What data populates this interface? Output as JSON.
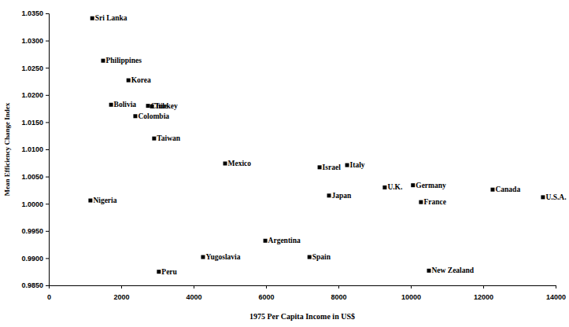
{
  "chart_data": {
    "type": "scatter",
    "xlabel": "1975 Per Capita Income in US$",
    "ylabel": "Mean Efficiency Change Index",
    "xlim": [
      0,
      14000
    ],
    "xticks": [
      0,
      2000,
      4000,
      6000,
      8000,
      10000,
      12000,
      14000
    ],
    "ylim": [
      0.985,
      1.035
    ],
    "yticks": [
      {
        "value": 0.985,
        "label": "0.9850"
      },
      {
        "value": 0.99,
        "label": "0.9900"
      },
      {
        "value": 0.995,
        "label": "0.9950"
      },
      {
        "value": 1.0,
        "label": "1.0000"
      },
      {
        "value": 1.005,
        "label": "1.0050"
      },
      {
        "value": 1.01,
        "label": "1.0100"
      },
      {
        "value": 1.015,
        "label": "1.0150"
      },
      {
        "value": 1.02,
        "label": "1.0200"
      },
      {
        "value": 1.025,
        "label": "1.0250"
      },
      {
        "value": 1.03,
        "label": "1.0300"
      },
      {
        "value": 1.035,
        "label": "1.0350"
      }
    ],
    "color": "#000000",
    "marker": "square",
    "labels": [
      "Sri Lanka",
      "Philippines",
      "Korea",
      "Bolivia",
      "Turkey",
      "Chile",
      "Colombia",
      "Taiwan",
      "Mexico",
      "Israel",
      "Italy",
      "Japan",
      "U.K.",
      "Germany",
      "France",
      "Canada",
      "U.S.A.",
      "Nigeria",
      "Argentina",
      "Yugoslavia",
      "Spain",
      "Peru",
      "New Zealand"
    ],
    "x": [
      1200,
      1500,
      2200,
      1720,
      2850,
      2740,
      2390,
      2910,
      4870,
      7480,
      8240,
      7740,
      9280,
      10060,
      10280,
      12260,
      13650,
      1150,
      5980,
      4260,
      7200,
      3040,
      10500
    ],
    "values": [
      1.0341,
      1.0263,
      1.0227,
      1.0182,
      1.0179,
      1.018,
      1.0161,
      1.012,
      1.0074,
      1.0067,
      1.0071,
      1.0015,
      1.003,
      1.0034,
      1.0003,
      1.0026,
      1.0012,
      1.0006,
      0.9932,
      0.9902,
      0.9902,
      0.9875,
      0.9877
    ]
  }
}
